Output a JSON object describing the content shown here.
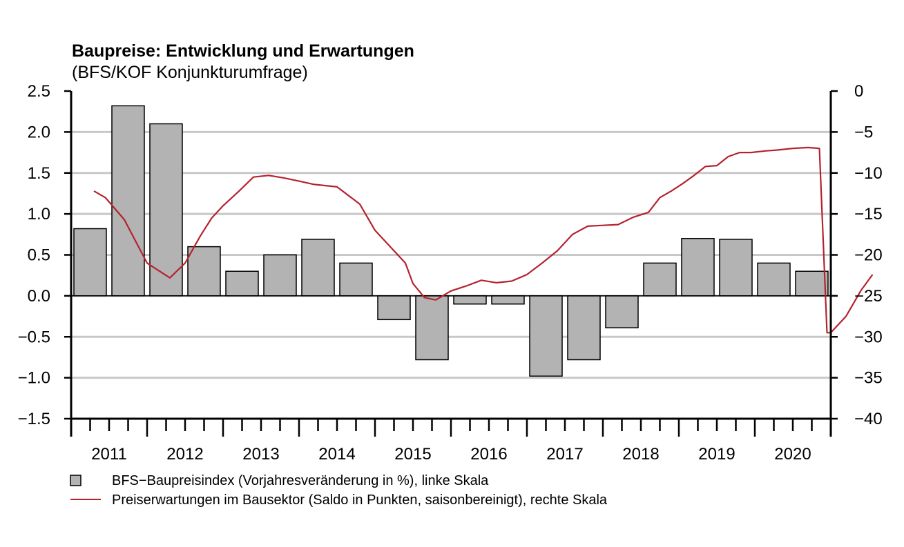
{
  "chart_data": {
    "type": "bar+line",
    "title": "Baupreise: Entwicklung und Erwartungen",
    "subtitle": "(BFS/KOF Konjunkturumfrage)",
    "x_tick_labels": [
      "2011",
      "2012",
      "2013",
      "2014",
      "2015",
      "2016",
      "2017",
      "2018",
      "2019",
      "2020"
    ],
    "left_axis": {
      "ylim": [
        -1.5,
        2.5
      ],
      "ticks": [
        2.5,
        2.0,
        1.5,
        1.0,
        0.5,
        0.0,
        -0.5,
        -1.0,
        -1.5
      ],
      "tick_labels": [
        "2.5",
        "2.0",
        "1.5",
        "1.0",
        "0.5",
        "0.0",
        "−0.5",
        "−1.0",
        "−1.5"
      ]
    },
    "right_axis": {
      "ylim": [
        -40,
        0
      ],
      "ticks": [
        0,
        -5,
        -10,
        -15,
        -20,
        -25,
        -30,
        -35,
        -40
      ],
      "tick_labels": [
        "0",
        "−5",
        "−10",
        "−15",
        "−20",
        "−25",
        "−30",
        "−35",
        "−40"
      ]
    },
    "grid": true,
    "series": [
      {
        "name": "BFS−Baupreisindex (Vorjahresveränderung in %), linke Skala",
        "kind": "bar",
        "axis": "left",
        "color": "#b3b3b3",
        "periods": [
          "2011H1",
          "2011H2",
          "2012H1",
          "2012H2",
          "2013H1",
          "2013H2",
          "2014H1",
          "2014H2",
          "2015H1",
          "2015H2",
          "2016H1",
          "2016H2",
          "2017H1",
          "2017H2",
          "2018H1",
          "2018H2",
          "2019H1",
          "2019H2",
          "2020H1",
          "2020H2"
        ],
        "values": [
          0.82,
          2.32,
          2.1,
          0.6,
          0.3,
          0.5,
          0.69,
          0.4,
          -0.29,
          -0.78,
          -0.1,
          -0.1,
          -0.98,
          -0.78,
          -0.39,
          0.4,
          0.7,
          0.69,
          0.4,
          0.3
        ]
      },
      {
        "name": "Preiserwartungen im Bausektor (Saldo in Punkten, saisonbereinigt), rechte Skala",
        "kind": "line",
        "axis": "right",
        "color": "#b5222e",
        "t": [
          0.3,
          0.45,
          0.7,
          1.0,
          1.3,
          1.5,
          1.7,
          1.85,
          2.0,
          2.2,
          2.4,
          2.6,
          2.8,
          3.0,
          3.2,
          3.5,
          3.8,
          4.0,
          4.2,
          4.4,
          4.5,
          4.65,
          4.8,
          5.0,
          5.2,
          5.4,
          5.6,
          5.8,
          6.0,
          6.2,
          6.4,
          6.6,
          6.8,
          7.0,
          7.2,
          7.4,
          7.6,
          7.75,
          7.9,
          8.05,
          8.2,
          8.35,
          8.5,
          8.65,
          8.8,
          8.95,
          9.15,
          9.3,
          9.5,
          9.7,
          9.85,
          9.95,
          10.0,
          10.2,
          10.4,
          10.55
        ],
        "values": [
          -12.2,
          -13.0,
          -15.7,
          -21.0,
          -22.8,
          -21.0,
          -17.7,
          -15.5,
          -14.0,
          -12.3,
          -10.5,
          -10.3,
          -10.6,
          -11.0,
          -11.4,
          -11.7,
          -13.8,
          -17.0,
          -19.0,
          -21.0,
          -23.5,
          -25.2,
          -25.5,
          -24.4,
          -23.8,
          -23.1,
          -23.4,
          -23.2,
          -22.4,
          -21.0,
          -19.5,
          -17.5,
          -16.5,
          -16.4,
          -16.3,
          -15.4,
          -14.8,
          -13.0,
          -12.2,
          -11.3,
          -10.3,
          -9.2,
          -9.1,
          -8.0,
          -7.5,
          -7.5,
          -7.3,
          -7.2,
          -7.0,
          -6.9,
          -7.0,
          -29.5,
          -29.5,
          -27.5,
          -24.3,
          -22.4
        ]
      }
    ]
  },
  "legend": {
    "bar_label": "BFS−Baupreisindex (Vorjahresveränderung in %), linke Skala",
    "line_label": "Preiserwartungen im Bausektor (Saldo in Punkten, saisonbereinigt), rechte Skala"
  }
}
